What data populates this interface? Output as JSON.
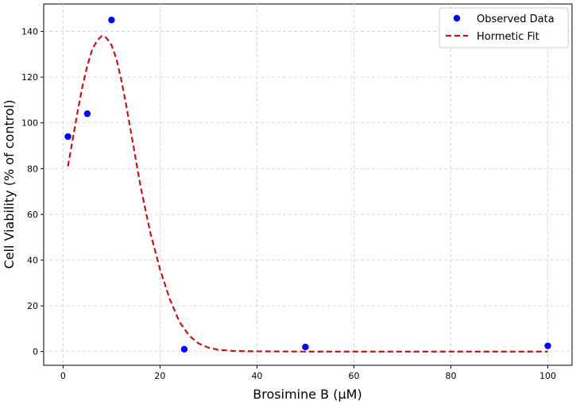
{
  "chart_data": {
    "type": "scatter",
    "title": "",
    "xlabel": "Brosimine B (μM)",
    "ylabel": "Cell Viability (% of control)",
    "xlim": [
      -4,
      105
    ],
    "ylim": [
      -6,
      152
    ],
    "xticks": [
      0,
      20,
      40,
      60,
      80,
      100
    ],
    "yticks": [
      0,
      20,
      40,
      60,
      80,
      100,
      120,
      140
    ],
    "grid": true,
    "legend_position": "top-right",
    "series": [
      {
        "name": "Observed Data",
        "type": "scatter",
        "color": "#0000ff",
        "x": [
          1,
          5,
          10,
          25,
          50,
          100
        ],
        "y": [
          94,
          104,
          145,
          1,
          2,
          2.5
        ]
      },
      {
        "name": "Hormetic Fit",
        "type": "line",
        "style": "dashed",
        "color": "#cc1111",
        "x": [
          1,
          2,
          3,
          4,
          5,
          6,
          7,
          8,
          8.5,
          9,
          10,
          11,
          12,
          13,
          14,
          15,
          16,
          18,
          20,
          22,
          24,
          26,
          28,
          30,
          32,
          35,
          40,
          50,
          60,
          70,
          80,
          90,
          100
        ],
        "y": [
          81,
          93,
          105,
          116,
          125,
          132,
          136,
          138,
          138,
          137,
          134,
          128,
          119,
          108,
          96,
          84,
          72,
          52,
          36,
          23,
          13,
          7,
          3.5,
          1.7,
          0.8,
          0.3,
          0.1,
          0,
          0,
          0,
          0,
          0,
          0
        ]
      }
    ]
  }
}
